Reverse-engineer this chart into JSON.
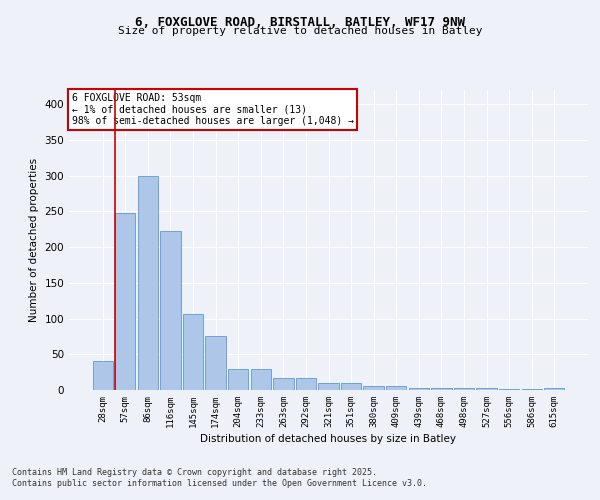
{
  "title1": "6, FOXGLOVE ROAD, BIRSTALL, BATLEY, WF17 9NW",
  "title2": "Size of property relative to detached houses in Batley",
  "xlabel": "Distribution of detached houses by size in Batley",
  "ylabel": "Number of detached properties",
  "categories": [
    "28sqm",
    "57sqm",
    "86sqm",
    "116sqm",
    "145sqm",
    "174sqm",
    "204sqm",
    "233sqm",
    "263sqm",
    "292sqm",
    "321sqm",
    "351sqm",
    "380sqm",
    "409sqm",
    "439sqm",
    "468sqm",
    "498sqm",
    "527sqm",
    "556sqm",
    "586sqm",
    "615sqm"
  ],
  "values": [
    40,
    248,
    300,
    222,
    106,
    75,
    30,
    30,
    17,
    17,
    10,
    10,
    5,
    5,
    3,
    3,
    3,
    3,
    2,
    2,
    3
  ],
  "bar_color": "#aec6e8",
  "bar_edge_color": "#5b9bd5",
  "annotation_box_text": "6 FOXGLOVE ROAD: 53sqm\n← 1% of detached houses are smaller (13)\n98% of semi-detached houses are larger (1,048) →",
  "annotation_box_color": "#ffffff",
  "annotation_box_edge_color": "#cc0000",
  "vline_color": "#cc0000",
  "bg_color": "#eef2f8",
  "plot_bg_color": "#eef2f8",
  "grid_color": "#ffffff",
  "footer_text": "Contains HM Land Registry data © Crown copyright and database right 2025.\nContains public sector information licensed under the Open Government Licence v3.0.",
  "ylim": [
    0,
    420
  ],
  "yticks": [
    0,
    50,
    100,
    150,
    200,
    250,
    300,
    350,
    400
  ]
}
